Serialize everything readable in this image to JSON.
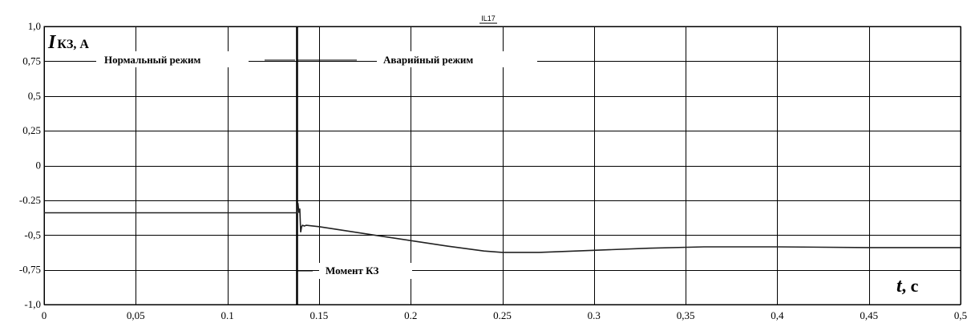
{
  "chart_data": {
    "type": "line",
    "series_tag": "IL17",
    "ylabel_main": "I",
    "ylabel_sub": "КЗ, А",
    "xlabel_main": "t",
    "xlabel_unit": ", с",
    "xlim": [
      0,
      0.5
    ],
    "ylim": [
      -1.0,
      1.0
    ],
    "x_ticks": [
      "0",
      "0,05",
      "0.1",
      "0.15",
      "0.2",
      "0.25",
      "0.3",
      "0,35",
      "0,4",
      "0,45",
      "0,5"
    ],
    "x_tick_values": [
      0,
      0.05,
      0.1,
      0.15,
      0.2,
      0.25,
      0.3,
      0.35,
      0.4,
      0.45,
      0.5
    ],
    "y_ticks": [
      "1,0",
      "0,75",
      "0,5",
      "0,25",
      "0",
      "-0.25",
      "-0,5",
      "-0,75",
      "-1,0"
    ],
    "y_tick_values": [
      1.0,
      0.75,
      0.5,
      0.25,
      0,
      -0.25,
      -0.5,
      -0.75,
      -1.0
    ],
    "grid": true,
    "fault_time": 0.138,
    "annotations": {
      "normal": "Нормальный режим",
      "emergency": "Аварийный режим",
      "fault_moment": "Момент КЗ"
    },
    "series": [
      {
        "x": [
          0,
          0.138,
          0.1385,
          0.139,
          0.1395,
          0.14,
          0.1405,
          0.141,
          0.142,
          0.143,
          0.15,
          0.16,
          0.18,
          0.2,
          0.22,
          0.24,
          0.25,
          0.27,
          0.3,
          0.33,
          0.36,
          0.4,
          0.45,
          0.5
        ],
        "y": [
          -0.34,
          -0.34,
          -0.27,
          -0.34,
          -0.31,
          -0.48,
          -0.44,
          -0.43,
          -0.435,
          -0.43,
          -0.44,
          -0.46,
          -0.5,
          -0.54,
          -0.58,
          -0.615,
          -0.625,
          -0.625,
          -0.61,
          -0.595,
          -0.585,
          -0.585,
          -0.59,
          -0.59
        ]
      }
    ]
  }
}
